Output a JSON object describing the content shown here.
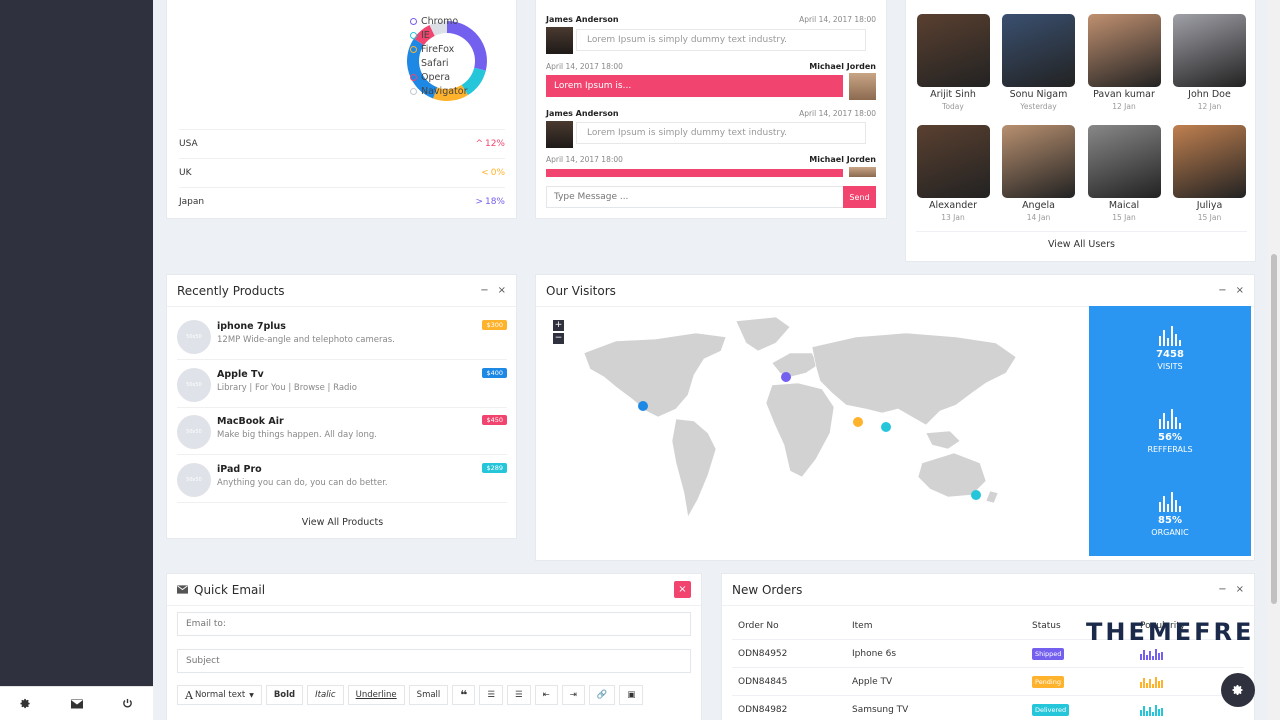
{
  "browser_card": {
    "legend": [
      {
        "label": "Chromo",
        "color": "#7460ee"
      },
      {
        "label": "IE",
        "color": "#26c6da"
      },
      {
        "label": "FireFox",
        "color": "#ffb22b"
      },
      {
        "label": "Safari",
        "color": "#1e88e5"
      },
      {
        "label": "Opera",
        "color": "#f1456f"
      },
      {
        "label": "Navigator",
        "color": "#c4c8d0"
      }
    ],
    "countries": [
      {
        "name": "USA",
        "value": "12%",
        "arrow": "^",
        "color": "#f1456f"
      },
      {
        "name": "UK",
        "value": "0%",
        "arrow": "<",
        "color": "#ffb22b"
      },
      {
        "name": "Japan",
        "value": "18%",
        "arrow": ">",
        "color": "#7460ee"
      }
    ],
    "donut": [
      {
        "label": "Chromo",
        "value": 28,
        "color": "#7460ee"
      },
      {
        "label": "IE",
        "value": 12,
        "color": "#26c6da"
      },
      {
        "label": "FireFox",
        "value": 14,
        "color": "#ffb22b"
      },
      {
        "label": "Safari",
        "value": 28,
        "color": "#1e88e5"
      },
      {
        "label": "Opera",
        "value": 8,
        "color": "#f1456f"
      },
      {
        "label": "Navigator",
        "value": 7,
        "color": "#dcdfe5"
      }
    ]
  },
  "chat": {
    "messages": [
      {
        "name": "James Anderson",
        "time": "April 14, 2017 18:00",
        "text": "Lorem Ipsum is simply dummy text industry."
      },
      {
        "name": "Michael Jorden",
        "time": "April 14, 2017 18:00",
        "text": "Lorem Ipsum is..."
      },
      {
        "name": "James Anderson",
        "time": "April 14, 2017 18:00",
        "text": "Lorem Ipsum is simply dummy text industry."
      },
      {
        "name": "Michael Jorden",
        "time": "April 14, 2017 18:00",
        "text": ""
      }
    ],
    "input_placeholder": "Type Message ...",
    "send_label": "Send"
  },
  "users": {
    "items": [
      {
        "name": "Arijit Sinh",
        "date": "Today"
      },
      {
        "name": "Sonu Nigam",
        "date": "Yesterday"
      },
      {
        "name": "Pavan kumar",
        "date": "12 Jan"
      },
      {
        "name": "John Doe",
        "date": "12 Jan"
      },
      {
        "name": "Alexander",
        "date": "13 Jan"
      },
      {
        "name": "Angela",
        "date": "14 Jan"
      },
      {
        "name": "Maical",
        "date": "15 Jan"
      },
      {
        "name": "Juliya",
        "date": "15 Jan"
      }
    ],
    "view_all": "View All Users"
  },
  "products": {
    "title": "Recently Products",
    "thumb_text": "50x50",
    "items": [
      {
        "name": "iphone 7plus",
        "desc": "12MP Wide-angle and telephoto cameras.",
        "price": "$300",
        "color": "#ffb22b"
      },
      {
        "name": "Apple Tv",
        "desc": "Library | For You | Browse | Radio",
        "price": "$400",
        "color": "#1e88e5"
      },
      {
        "name": "MacBook Air",
        "desc": "Make big things happen. All day long.",
        "price": "$450",
        "color": "#f1456f"
      },
      {
        "name": "iPad Pro",
        "desc": "Anything you can do, you can do better.",
        "price": "$289",
        "color": "#26c6da"
      }
    ],
    "view_all": "View All Products"
  },
  "visitors": {
    "title": "Our Visitors",
    "zoom_in": "+",
    "zoom_out": "−",
    "stats": [
      {
        "value": "7458",
        "label": "VISITS"
      },
      {
        "value": "56%",
        "label": "REFFERALS"
      },
      {
        "value": "85%",
        "label": "ORGANIC"
      }
    ],
    "markers": [
      {
        "name": "usa-west",
        "color": "#1e88e5"
      },
      {
        "name": "uk",
        "color": "#7460ee"
      },
      {
        "name": "middle-east",
        "color": "#ffb22b"
      },
      {
        "name": "india",
        "color": "#26c6da"
      },
      {
        "name": "australia",
        "color": "#26c6da"
      }
    ]
  },
  "email": {
    "title": "Quick Email",
    "close": "×",
    "email_placeholder": "Email to:",
    "subject_placeholder": "Subject",
    "toolbar": {
      "format": "Normal text",
      "bold": "Bold",
      "italic": "Italic",
      "underline": "Underline",
      "small": "Small"
    }
  },
  "orders": {
    "title": "New Orders",
    "columns": [
      "Order No",
      "Item",
      "Status",
      "Popularity"
    ],
    "rows": [
      {
        "no": "ODN84952",
        "item": "Iphone 6s",
        "status": "Shipped",
        "color": "#7460ee"
      },
      {
        "no": "ODN84845",
        "item": "Apple TV",
        "status": "Pending",
        "color": "#ffb22b"
      },
      {
        "no": "ODN84982",
        "item": "Samsung TV",
        "status": "Delivered",
        "color": "#26c6da"
      }
    ]
  },
  "watermark": "THEMEFRE",
  "card_actions": {
    "minimize": "−",
    "close": "×"
  }
}
